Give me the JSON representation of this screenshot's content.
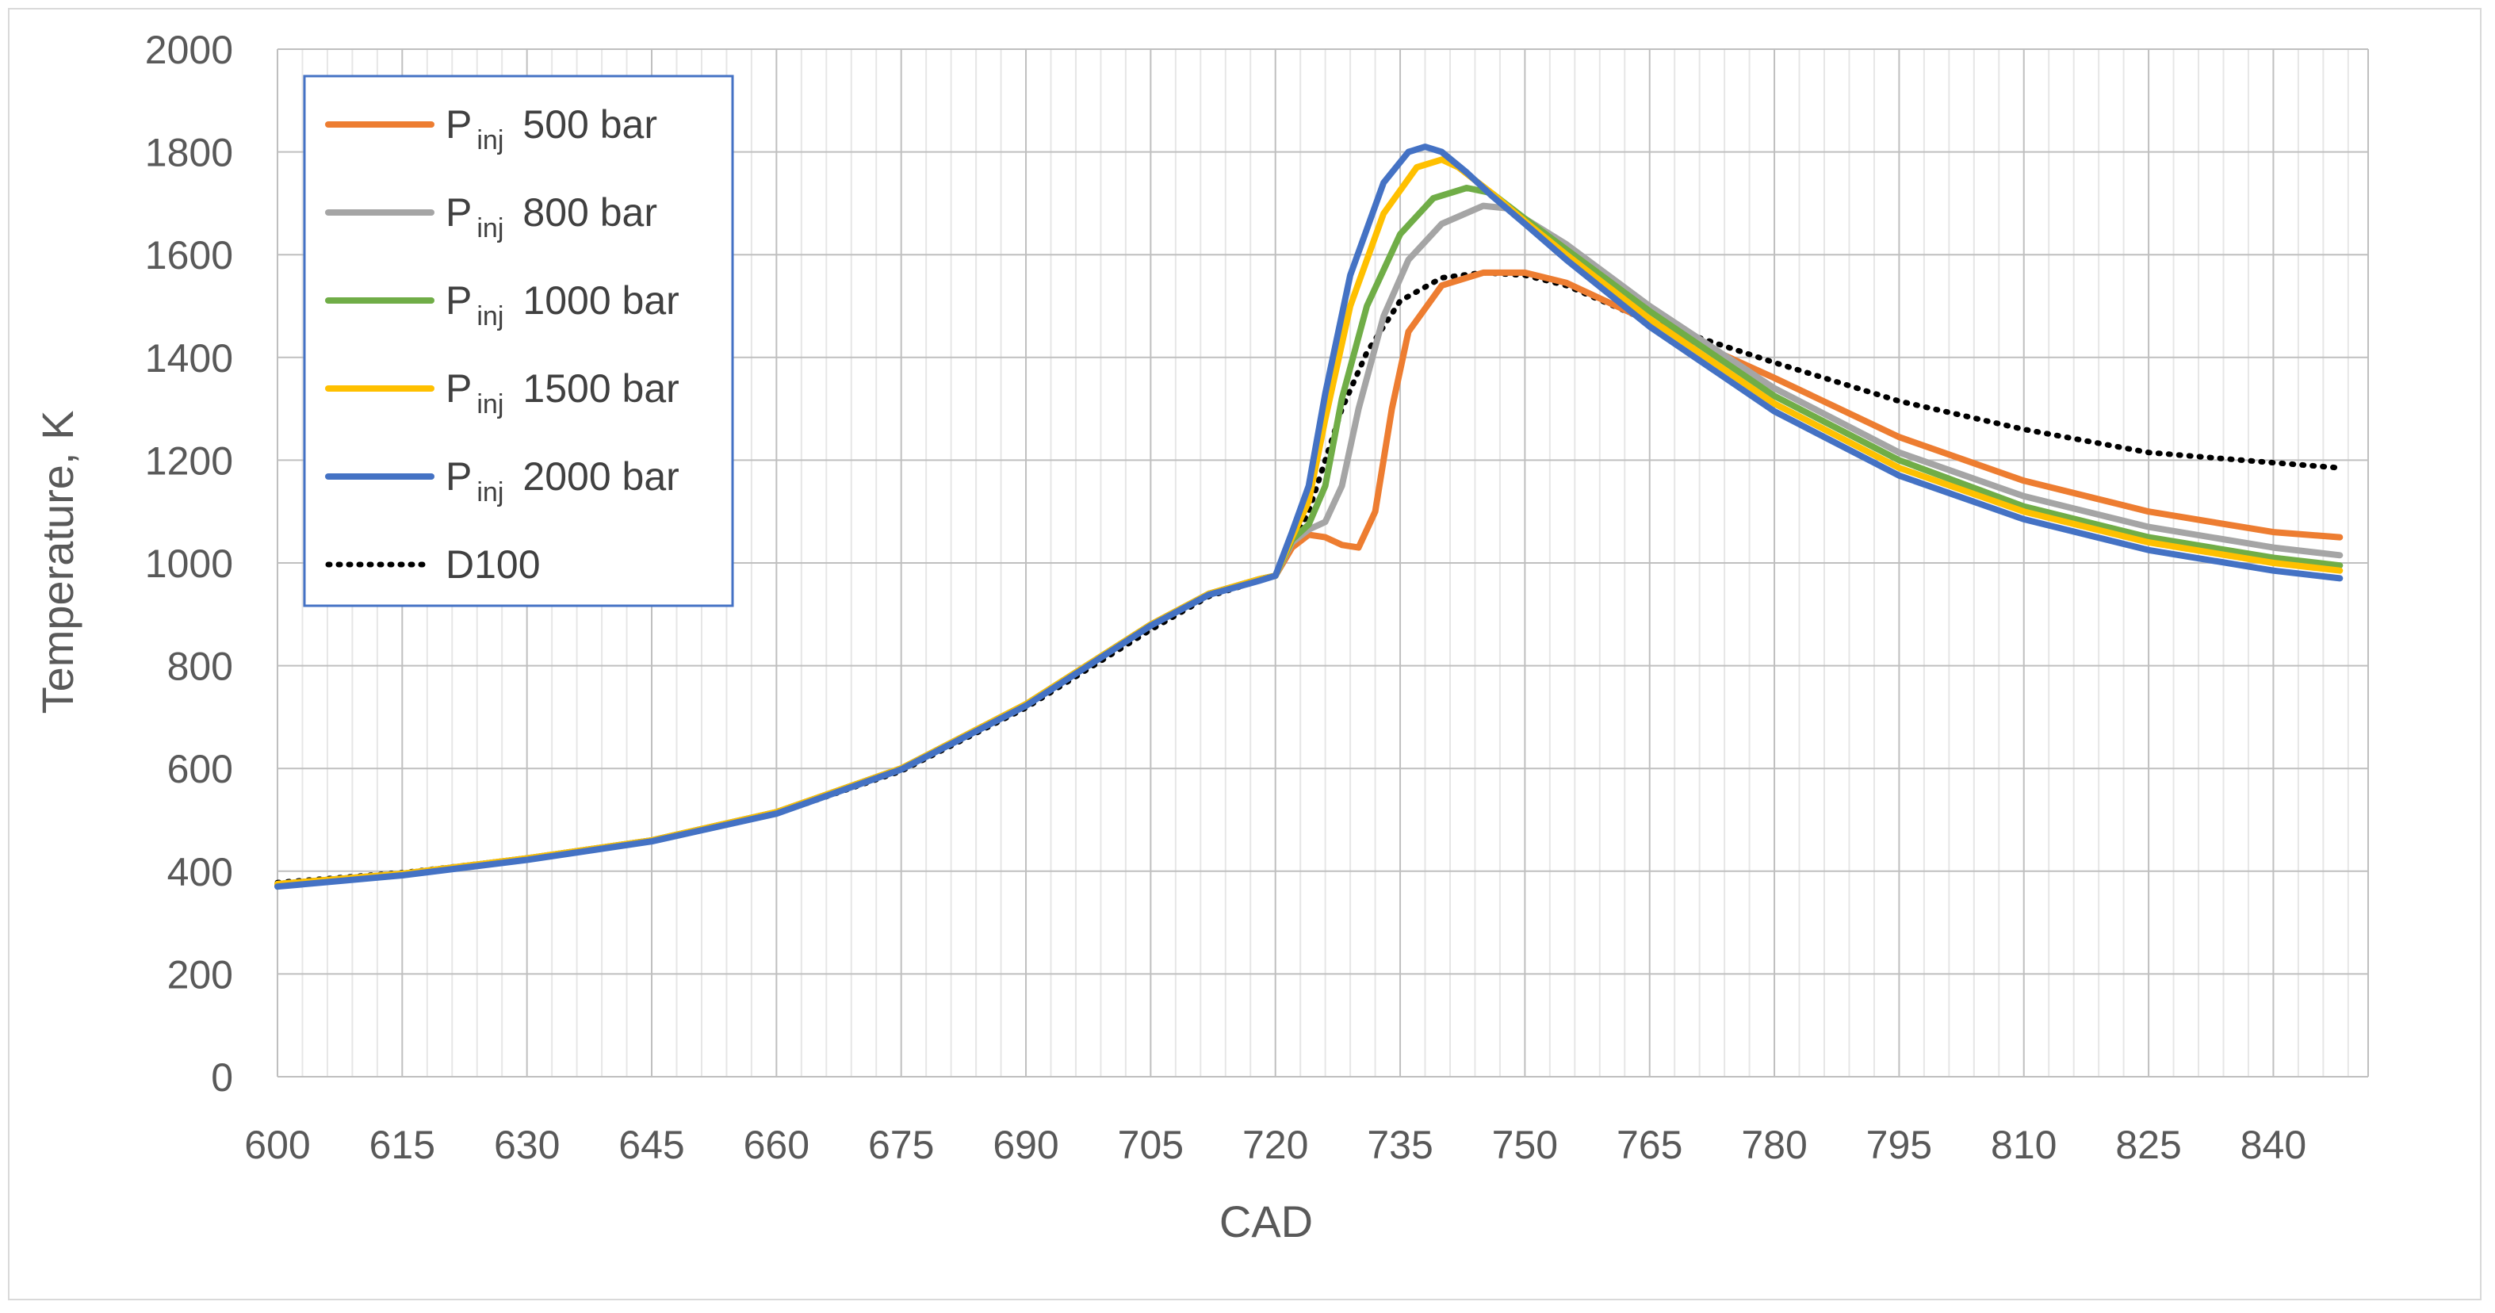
{
  "chart_data": {
    "type": "line",
    "title": "",
    "xlabel": "CAD",
    "ylabel": "Temperature, K",
    "xlim": [
      600,
      840
    ],
    "ylim": [
      0,
      2000
    ],
    "x_ticks": [
      600,
      615,
      630,
      645,
      660,
      675,
      690,
      705,
      720,
      735,
      750,
      765,
      780,
      795,
      810,
      825,
      840
    ],
    "y_ticks": [
      0,
      200,
      400,
      600,
      800,
      1000,
      1200,
      1400,
      1600,
      1800,
      2000
    ],
    "x_tick_labels": [
      "600",
      "615",
      "630",
      "645",
      "660",
      "675",
      "690",
      "705",
      "720",
      "735",
      "750",
      "765",
      "780",
      "795",
      "810",
      "825",
      "840"
    ],
    "y_tick_labels": [
      "0",
      "200",
      "400",
      "600",
      "800",
      "1000",
      "1200",
      "1400",
      "1600",
      "1800",
      "2000"
    ],
    "grid": true,
    "legend_position": "top-left",
    "series": [
      {
        "name": "P inj 500 bar",
        "label_main": "P",
        "label_sub": "inj",
        "label_rest": "500 bar",
        "color": "#ED7D31",
        "style": "solid",
        "x": [
          600,
          615,
          630,
          645,
          660,
          675,
          690,
          705,
          712,
          718,
          720,
          722,
          724,
          726,
          728,
          730,
          732,
          734,
          736,
          740,
          745,
          750,
          755,
          765,
          780,
          795,
          810,
          825,
          840,
          848
        ],
        "y": [
          375,
          395,
          425,
          460,
          515,
          600,
          725,
          880,
          940,
          968,
          975,
          1030,
          1055,
          1050,
          1035,
          1030,
          1100,
          1300,
          1450,
          1540,
          1565,
          1565,
          1545,
          1470,
          1360,
          1245,
          1160,
          1100,
          1060,
          1050
        ]
      },
      {
        "name": "P inj 800 bar",
        "label_main": "P",
        "label_sub": "inj",
        "label_rest": "800 bar",
        "color": "#A5A5A5",
        "style": "solid",
        "x": [
          600,
          615,
          630,
          645,
          660,
          675,
          690,
          705,
          712,
          718,
          720,
          722,
          724,
          726,
          728,
          730,
          733,
          736,
          740,
          745,
          748,
          750,
          755,
          765,
          780,
          795,
          810,
          825,
          840,
          848
        ],
        "y": [
          375,
          395,
          425,
          460,
          515,
          600,
          725,
          880,
          940,
          968,
          975,
          1040,
          1065,
          1080,
          1150,
          1300,
          1480,
          1590,
          1660,
          1695,
          1690,
          1670,
          1620,
          1500,
          1340,
          1215,
          1130,
          1070,
          1030,
          1015
        ]
      },
      {
        "name": "P inj 1000 bar",
        "label_main": "P",
        "label_sub": "inj",
        "label_rest": "1000 bar",
        "color": "#70AD47",
        "style": "solid",
        "x": [
          600,
          615,
          630,
          645,
          660,
          675,
          690,
          705,
          712,
          718,
          720,
          722,
          724,
          726,
          728,
          731,
          735,
          739,
          743,
          746,
          750,
          755,
          765,
          780,
          795,
          810,
          825,
          840,
          848
        ],
        "y": [
          375,
          395,
          425,
          460,
          515,
          600,
          725,
          880,
          940,
          968,
          975,
          1045,
          1075,
          1150,
          1320,
          1500,
          1640,
          1710,
          1730,
          1720,
          1670,
          1610,
          1490,
          1325,
          1200,
          1110,
          1050,
          1010,
          995
        ]
      },
      {
        "name": "P inj 1500 bar",
        "label_main": "P",
        "label_sub": "inj",
        "label_rest": "1500 bar",
        "color": "#FFC000",
        "style": "solid",
        "x": [
          600,
          615,
          630,
          645,
          660,
          675,
          690,
          705,
          712,
          718,
          720,
          722,
          724,
          726,
          729,
          733,
          737,
          740,
          742,
          746,
          750,
          755,
          765,
          780,
          795,
          810,
          825,
          840,
          848
        ],
        "y": [
          375,
          395,
          425,
          460,
          515,
          600,
          725,
          880,
          940,
          968,
          975,
          1050,
          1120,
          1280,
          1500,
          1680,
          1770,
          1785,
          1770,
          1720,
          1665,
          1600,
          1475,
          1310,
          1185,
          1100,
          1040,
          1000,
          985
        ]
      },
      {
        "name": "P inj 2000 bar",
        "label_main": "P",
        "label_sub": "inj",
        "label_rest": "2000 bar",
        "color": "#4472C4",
        "style": "solid",
        "x": [
          600,
          615,
          630,
          645,
          660,
          675,
          690,
          705,
          712,
          718,
          720,
          722,
          724,
          726,
          729,
          733,
          736,
          738,
          740,
          743,
          746,
          750,
          755,
          765,
          780,
          795,
          810,
          825,
          840,
          848
        ],
        "y": [
          370,
          392,
          422,
          458,
          512,
          598,
          722,
          878,
          938,
          965,
          975,
          1060,
          1150,
          1330,
          1560,
          1740,
          1800,
          1810,
          1800,
          1760,
          1715,
          1660,
          1590,
          1460,
          1295,
          1170,
          1085,
          1025,
          985,
          970
        ]
      },
      {
        "name": "D100",
        "label_main": "D100",
        "label_sub": "",
        "label_rest": "",
        "color": "#000000",
        "style": "dotted",
        "x": [
          600,
          615,
          630,
          645,
          660,
          675,
          690,
          705,
          712,
          718,
          720,
          722,
          724,
          726,
          728,
          731,
          735,
          740,
          745,
          750,
          755,
          765,
          780,
          795,
          810,
          825,
          840,
          848
        ],
        "y": [
          378,
          397,
          425,
          460,
          512,
          595,
          718,
          870,
          935,
          965,
          975,
          1035,
          1100,
          1200,
          1300,
          1410,
          1510,
          1555,
          1565,
          1560,
          1540,
          1470,
          1390,
          1315,
          1260,
          1215,
          1195,
          1185
        ]
      }
    ]
  }
}
